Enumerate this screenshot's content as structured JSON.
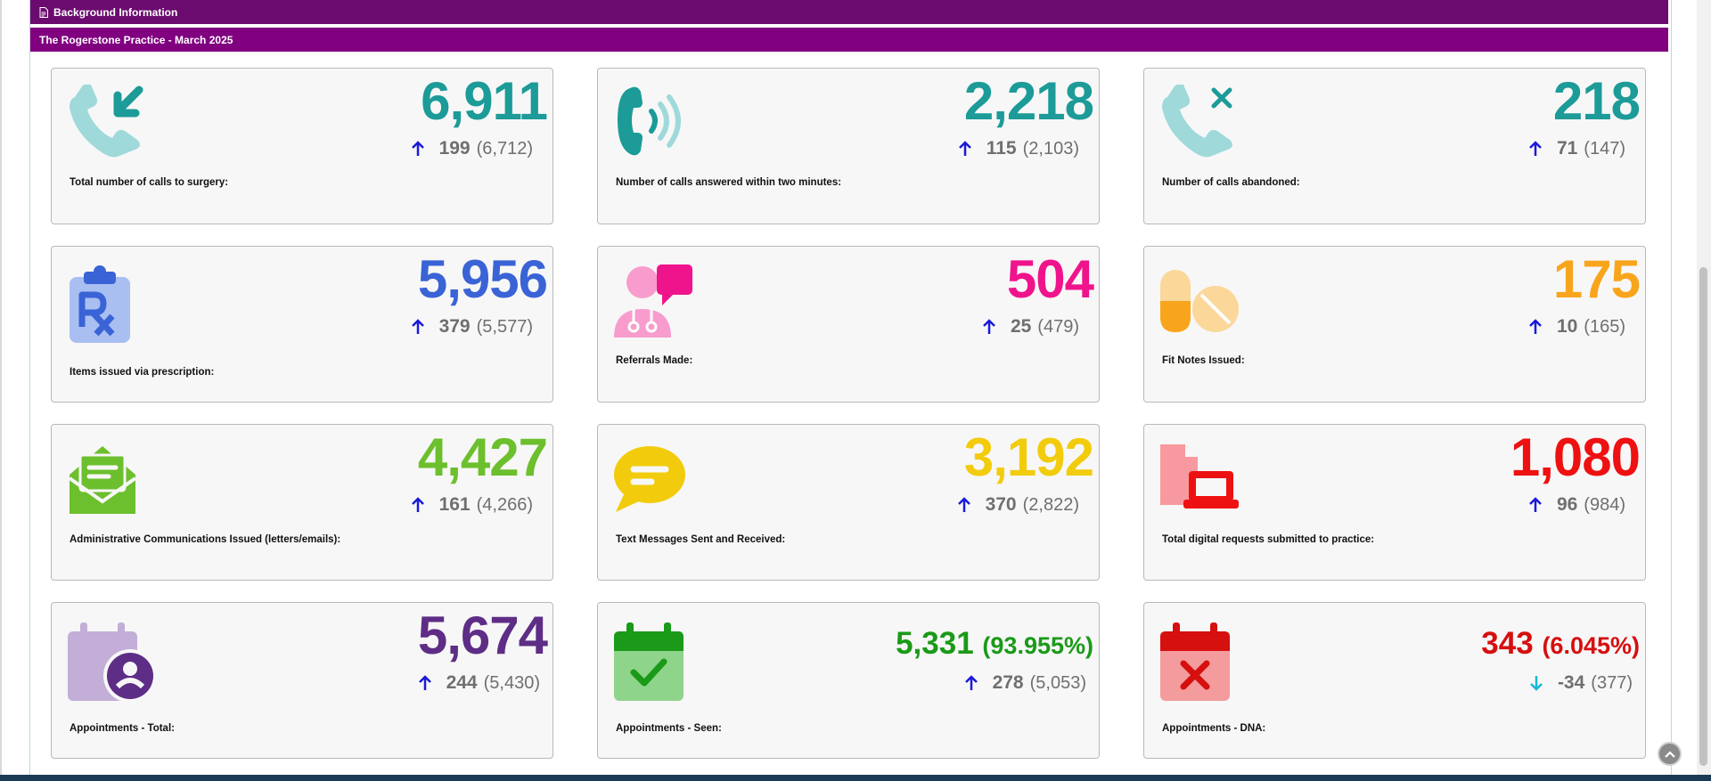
{
  "header": {
    "section_title": "Background Information",
    "practice_title": "The Rogerstone Practice - March 2025"
  },
  "cards": [
    {
      "id": "calls-total",
      "value": "6,911",
      "pct": "",
      "change": "199",
      "previous": "(6,712)",
      "trend": "up",
      "label": "Total number of calls to surgery:",
      "color": "#1c9b98",
      "icon": "phone-incoming-icon"
    },
    {
      "id": "calls-answered",
      "value": "2,218",
      "pct": "",
      "change": "115",
      "previous": "(2,103)",
      "trend": "up",
      "label": "Number of calls answered within two minutes:",
      "color": "#1c9b98",
      "icon": "phone-ringing-icon"
    },
    {
      "id": "calls-abandoned",
      "value": "218",
      "pct": "",
      "change": "71",
      "previous": "(147)",
      "trend": "up",
      "label": "Number of calls abandoned:",
      "color": "#1c9b98",
      "icon": "phone-missed-icon"
    },
    {
      "id": "prescriptions",
      "value": "5,956",
      "pct": "",
      "change": "379",
      "previous": "(5,577)",
      "trend": "up",
      "label": "Items issued via prescription:",
      "color": "#3a63d6",
      "icon": "prescription-clipboard-icon"
    },
    {
      "id": "referrals",
      "value": "504",
      "pct": "",
      "change": "25",
      "previous": "(479)",
      "trend": "up",
      "label": "Referrals Made:",
      "color": "#f0148c",
      "icon": "doctor-chat-icon"
    },
    {
      "id": "fit-notes",
      "value": "175",
      "pct": "",
      "change": "10",
      "previous": "(165)",
      "trend": "up",
      "label": "Fit Notes Issued:",
      "color": "#f8a51c",
      "icon": "pills-icon"
    },
    {
      "id": "admin-comms",
      "value": "4,427",
      "pct": "",
      "change": "161",
      "previous": "(4,266)",
      "trend": "up",
      "label": "Administrative Communications Issued (letters/emails):",
      "color": "#6cbf2d",
      "icon": "envelope-letter-icon"
    },
    {
      "id": "text-messages",
      "value": "3,192",
      "pct": "",
      "change": "370",
      "previous": "(2,822)",
      "trend": "up",
      "label": "Text Messages Sent and Received:",
      "color": "#f2cc0c",
      "icon": "speech-bubble-icon"
    },
    {
      "id": "digital-requests",
      "value": "1,080",
      "pct": "",
      "change": "96",
      "previous": "(984)",
      "trend": "up",
      "label": "Total digital requests submitted to practice:",
      "color": "#ee1111",
      "icon": "document-laptop-icon"
    },
    {
      "id": "appointments-total",
      "value": "5,674",
      "pct": "",
      "change": "244",
      "previous": "(5,430)",
      "trend": "up",
      "label": "Appointments - Total:",
      "color": "#5e2d86",
      "icon": "calendar-user-icon"
    },
    {
      "id": "appointments-seen",
      "value": "5,331",
      "pct": "(93.955%)",
      "change": "278",
      "previous": "(5,053)",
      "trend": "up",
      "label": "Appointments - Seen:",
      "color": "#1a9a18",
      "icon": "calendar-check-icon"
    },
    {
      "id": "appointments-dna",
      "value": "343",
      "pct": "(6.045%)",
      "change": "-34",
      "previous": "(377)",
      "trend": "down",
      "label": "Appointments - DNA:",
      "color": "#d60f0f",
      "icon": "calendar-cross-icon"
    }
  ],
  "colors": {
    "header_dark": "#6c0b6f",
    "header": "#800080",
    "arrow_up": "#1a1adb",
    "arrow_down": "#1ab6d8",
    "muted": "#6f6f6f"
  }
}
